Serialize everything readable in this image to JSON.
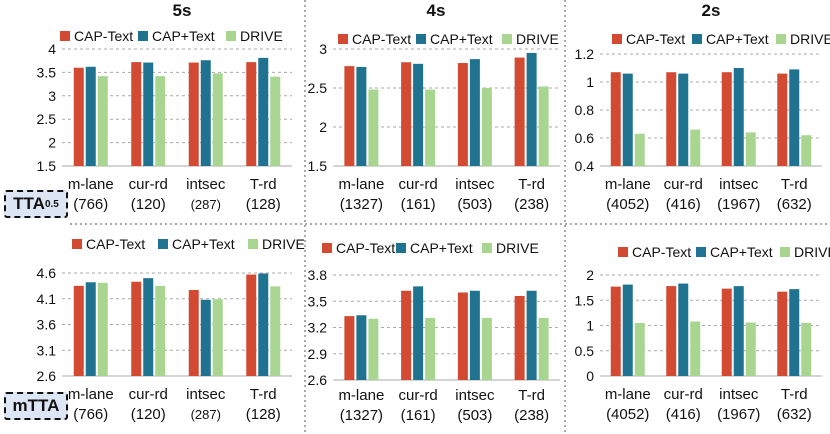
{
  "row_labels": {
    "tta_main": "TTA",
    "tta_sub": "0.5",
    "mtta": "mTTA"
  },
  "col_titles": [
    "5s",
    "4s",
    "2s"
  ],
  "colors": {
    "cap_text": "#d34a32",
    "cap_plus_text": "#1f7391",
    "drive": "#a8d690"
  },
  "chart_data": [
    {
      "id": "tta-5s",
      "type": "bar",
      "title": "5s",
      "metric": "TTA0.5",
      "categories": [
        "m-lane",
        "cur-rd",
        "intsec",
        "T-rd"
      ],
      "counts": [
        "(766)",
        "(120)",
        "(287)",
        "(128)"
      ],
      "yticks": [
        "1.5",
        "2",
        "2.5",
        "3",
        "3.5",
        "4"
      ],
      "ylim": [
        1.5,
        4
      ],
      "series": [
        {
          "name": "CAP-Text",
          "values": [
            3.6,
            3.72,
            3.71,
            3.72
          ]
        },
        {
          "name": "CAP+Text",
          "values": [
            3.62,
            3.71,
            3.76,
            3.81
          ]
        },
        {
          "name": "DRIVE",
          "values": [
            3.42,
            3.42,
            3.48,
            3.41
          ]
        }
      ]
    },
    {
      "id": "tta-4s",
      "type": "bar",
      "title": "4s",
      "metric": "TTA0.5",
      "categories": [
        "m-lane",
        "cur-rd",
        "intsec",
        "T-rd"
      ],
      "counts": [
        "(1327)",
        "(161)",
        "(503)",
        "(238)"
      ],
      "yticks": [
        "1.5",
        "2",
        "2.5",
        "3"
      ],
      "ylim": [
        1.5,
        3
      ],
      "series": [
        {
          "name": "CAP-Text",
          "values": [
            2.78,
            2.83,
            2.82,
            2.89
          ]
        },
        {
          "name": "CAP+Text",
          "values": [
            2.77,
            2.81,
            2.87,
            2.95
          ]
        },
        {
          "name": "DRIVE",
          "values": [
            2.48,
            2.48,
            2.5,
            2.52
          ]
        }
      ]
    },
    {
      "id": "tta-2s",
      "type": "bar",
      "title": "2s",
      "metric": "TTA0.5",
      "categories": [
        "m-lane",
        "cur-rd",
        "intsec",
        "T-rd"
      ],
      "counts": [
        "(4052)",
        "(416)",
        "(1967)",
        "(632)"
      ],
      "yticks": [
        "0.4",
        "0.6",
        "0.8",
        "1",
        "1.2"
      ],
      "ylim": [
        0.4,
        1.2
      ],
      "series": [
        {
          "name": "CAP-Text",
          "values": [
            1.07,
            1.07,
            1.07,
            1.06
          ]
        },
        {
          "name": "CAP+Text",
          "values": [
            1.06,
            1.06,
            1.1,
            1.09
          ]
        },
        {
          "name": "DRIVE",
          "values": [
            0.63,
            0.66,
            0.64,
            0.62
          ]
        }
      ]
    },
    {
      "id": "mtta-5s",
      "type": "bar",
      "metric": "mTTA",
      "categories": [
        "m-lane",
        "cur-rd",
        "intsec",
        "T-rd"
      ],
      "counts": [
        "(766)",
        "(120)",
        "(287)",
        "(128)"
      ],
      "yticks": [
        "2.6",
        "3.1",
        "3.6",
        "4.1",
        "4.6"
      ],
      "ylim": [
        2.6,
        4.6
      ],
      "series": [
        {
          "name": "CAP-Text",
          "values": [
            4.35,
            4.43,
            4.27,
            4.57
          ]
        },
        {
          "name": "CAP+Text",
          "values": [
            4.42,
            4.5,
            4.08,
            4.59
          ]
        },
        {
          "name": "DRIVE",
          "values": [
            4.41,
            4.35,
            4.09,
            4.34
          ]
        }
      ]
    },
    {
      "id": "mtta-4s",
      "type": "bar",
      "metric": "mTTA",
      "categories": [
        "m-lane",
        "cur-rd",
        "intsec",
        "T-rd"
      ],
      "counts": [
        "(1327)",
        "(161)",
        "(503)",
        "(238)"
      ],
      "yticks": [
        "2.6",
        "2.9",
        "3.2",
        "3.5",
        "3.8"
      ],
      "ylim": [
        2.6,
        3.8
      ],
      "series": [
        {
          "name": "CAP-Text",
          "values": [
            3.33,
            3.62,
            3.6,
            3.56
          ]
        },
        {
          "name": "CAP+Text",
          "values": [
            3.34,
            3.67,
            3.62,
            3.62
          ]
        },
        {
          "name": "DRIVE",
          "values": [
            3.3,
            3.31,
            3.31,
            3.31
          ]
        }
      ]
    },
    {
      "id": "mtta-2s",
      "type": "bar",
      "metric": "mTTA",
      "categories": [
        "m-lane",
        "cur-rd",
        "intsec",
        "T-rd"
      ],
      "counts": [
        "(4052)",
        "(416)",
        "(1967)",
        "(632)"
      ],
      "yticks": [
        "0",
        "0.5",
        "1",
        "1.5",
        "2"
      ],
      "ylim": [
        0,
        2
      ],
      "series": [
        {
          "name": "CAP-Text",
          "values": [
            1.77,
            1.78,
            1.73,
            1.67
          ]
        },
        {
          "name": "CAP+Text",
          "values": [
            1.81,
            1.83,
            1.78,
            1.72
          ]
        },
        {
          "name": "DRIVE",
          "values": [
            1.05,
            1.08,
            1.06,
            1.05
          ]
        }
      ]
    }
  ]
}
